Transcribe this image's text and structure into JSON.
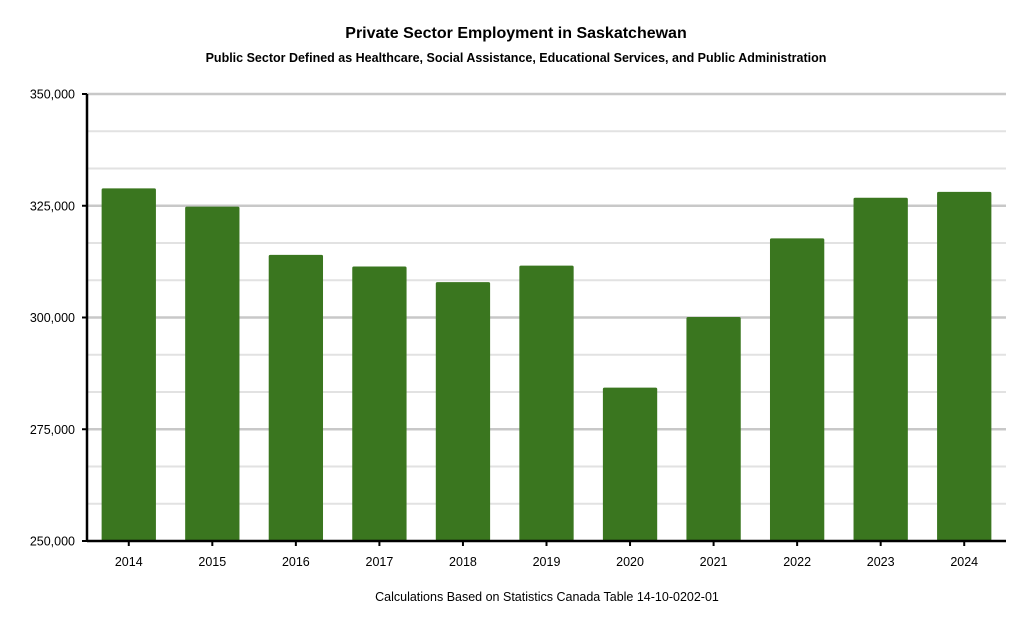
{
  "chart_data": {
    "type": "bar",
    "title": "Private Sector Employment in Saskatchewan",
    "subtitle": "Public Sector Defined as Healthcare, Social Assistance, Educational Services, and Public Administration",
    "caption": "Calculations Based on Statistics Canada Table 14-10-0202-01",
    "xlabel": "",
    "ylabel": "",
    "categories": [
      "2014",
      "2015",
      "2016",
      "2017",
      "2018",
      "2019",
      "2020",
      "2021",
      "2022",
      "2023",
      "2024"
    ],
    "values": [
      328900,
      324800,
      314000,
      311400,
      307900,
      311600,
      284300,
      300100,
      317700,
      326800,
      328100
    ],
    "ylim": [
      250000,
      350000
    ],
    "yticks": [
      250000,
      275000,
      300000,
      325000,
      350000
    ],
    "ytick_labels": [
      "250,000",
      "275,000",
      "300,000",
      "325,000",
      "350,000"
    ],
    "minor_step": 8333.33,
    "grid": true,
    "legend": "none",
    "bar_color": "#3a761f",
    "grid_major_color": "#c8c8c8",
    "grid_minor_color": "#e2e2e2"
  }
}
